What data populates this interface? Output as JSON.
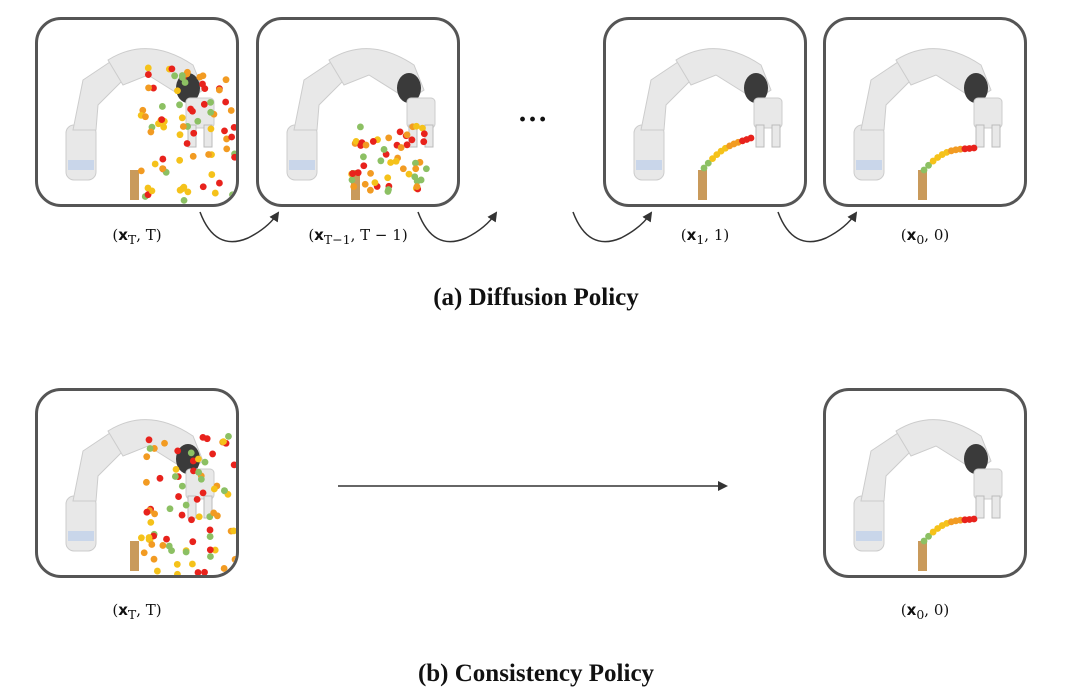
{
  "top": {
    "title": "(a)  Diffusion  Policy",
    "ellipsis": "...",
    "captions": [
      {
        "x": "x",
        "sub": "T",
        "rest": ", T)"
      },
      {
        "x": "x",
        "sub": "T−1",
        "rest": ", T − 1)"
      },
      {
        "x": "x",
        "sub": "1",
        "rest": ", 1)"
      },
      {
        "x": "x",
        "sub": "0",
        "rest": ", 0)"
      }
    ]
  },
  "bottom": {
    "title": "(b)  Consistency  Policy",
    "captions": [
      {
        "x": "x",
        "sub": "T",
        "rest": ", T)"
      },
      {
        "x": "x",
        "sub": "0",
        "rest": ", 0)"
      }
    ]
  },
  "colors": {
    "border": "#555555",
    "robot": "#e8e8e8",
    "robot_dark": "#3a3a3a",
    "block": "#c99a5b",
    "dot_red": "#e8221c",
    "dot_orange": "#f29b22",
    "dot_yellow": "#f5c21a",
    "dot_green": "#8cc063"
  },
  "icons": {
    "robot": "robot-arm-icon",
    "block": "wooden-block-icon",
    "arrow": "curved-arrow-icon"
  }
}
